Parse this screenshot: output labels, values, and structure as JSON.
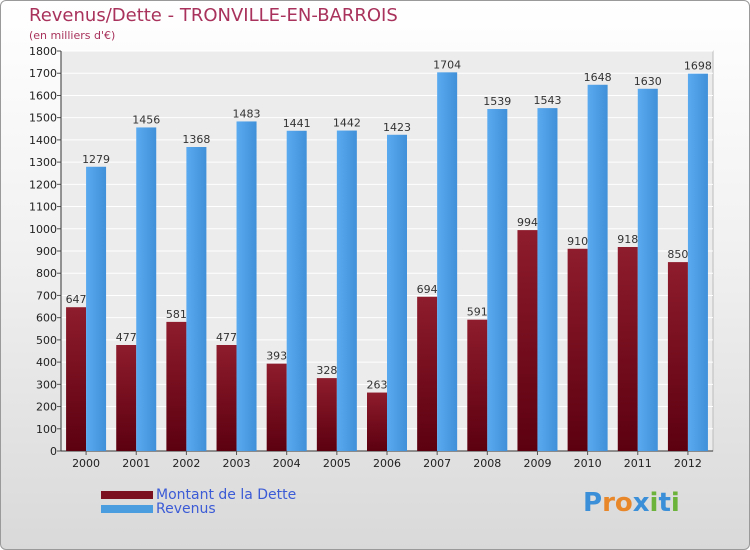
{
  "header": {
    "title": "Revenus/Dette - TRONVILLE-EN-BARROIS",
    "subtitle": "(en milliers d'€)"
  },
  "legend": {
    "items": [
      {
        "label": "Montant de la Dette",
        "color": "#7a1020"
      },
      {
        "label": "Revenus",
        "color": "#4a9ee0"
      }
    ]
  },
  "brand": {
    "letters": [
      "P",
      "r",
      "o",
      "x",
      "i",
      "t",
      "i"
    ],
    "colors": [
      "#3a8fd8",
      "#e8862a",
      "#e8862a",
      "#3a8fd8",
      "#6bb33a",
      "#3a8fd8",
      "#6bb33a"
    ]
  },
  "chart_data": {
    "type": "bar",
    "categories": [
      "2000",
      "2001",
      "2002",
      "2003",
      "2004",
      "2005",
      "2006",
      "2007",
      "2008",
      "2009",
      "2010",
      "2011",
      "2012"
    ],
    "series": [
      {
        "name": "Montant de la Dette",
        "color": "#7a1020",
        "values": [
          647,
          477,
          581,
          477,
          393,
          328,
          263,
          694,
          591,
          994,
          910,
          918,
          850
        ]
      },
      {
        "name": "Revenus",
        "color": "#4a9ee0",
        "values": [
          1279,
          1456,
          1368,
          1483,
          1441,
          1442,
          1423,
          1704,
          1539,
          1543,
          1648,
          1630,
          1698
        ]
      }
    ],
    "ylim": [
      0,
      1800
    ],
    "yticks": [
      0,
      100,
      200,
      300,
      400,
      500,
      600,
      700,
      800,
      900,
      1000,
      1100,
      1200,
      1300,
      1400,
      1500,
      1600,
      1700,
      1800
    ],
    "grid": true,
    "legend_position": "bottom-left"
  }
}
